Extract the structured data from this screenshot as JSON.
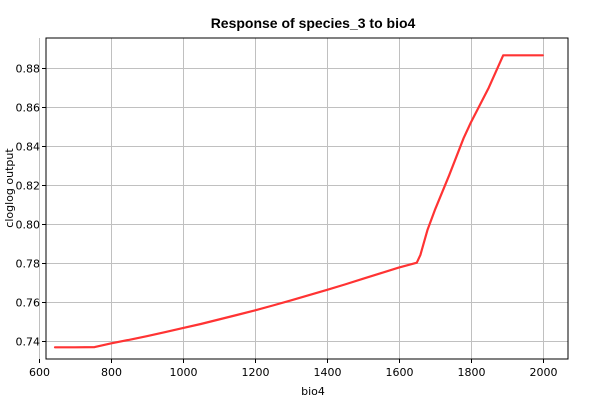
{
  "chart_data": {
    "type": "line",
    "title": "Response of species_3 to bio4",
    "xlabel": "bio4",
    "ylabel": "cloglog output",
    "xlim": [
      620,
      2070
    ],
    "ylim": [
      0.7305,
      0.8955
    ],
    "xticks": [
      600,
      800,
      1000,
      1200,
      1400,
      1600,
      1800,
      2000
    ],
    "yticks": [
      0.74,
      0.76,
      0.78,
      0.8,
      0.82,
      0.84,
      0.86,
      0.88
    ],
    "ytick_labels": [
      "0.74",
      "0.76",
      "0.78",
      "0.80",
      "0.82",
      "0.84",
      "0.86",
      "0.88"
    ],
    "grid": true,
    "series": [
      {
        "color": "#ff3333",
        "x": [
          645,
          700,
          755,
          800,
          850,
          900,
          950,
          1000,
          1050,
          1100,
          1150,
          1200,
          1250,
          1300,
          1350,
          1400,
          1450,
          1500,
          1550,
          1600,
          1640,
          1650,
          1660,
          1680,
          1700,
          1740,
          1780,
          1800,
          1850,
          1890,
          1950,
          2000
        ],
        "y": [
          0.7365,
          0.7365,
          0.7366,
          0.7385,
          0.7403,
          0.7422,
          0.7443,
          0.7464,
          0.7485,
          0.7508,
          0.7531,
          0.7555,
          0.758,
          0.7606,
          0.7633,
          0.766,
          0.7688,
          0.7717,
          0.7746,
          0.7775,
          0.7795,
          0.78,
          0.784,
          0.797,
          0.807,
          0.825,
          0.844,
          0.852,
          0.87,
          0.8866,
          0.8866,
          0.8866
        ]
      }
    ]
  }
}
